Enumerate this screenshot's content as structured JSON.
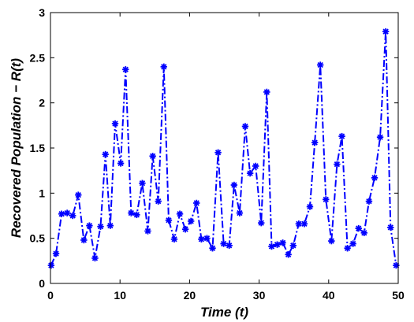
{
  "chart_data": {
    "type": "line",
    "title": "",
    "xlabel": "Time (t)",
    "ylabel": "Recovered Population − R(t)",
    "xlim": [
      0,
      50
    ],
    "ylim": [
      0,
      3
    ],
    "xticks": [
      "0",
      "10",
      "20",
      "30",
      "40",
      "50"
    ],
    "yticks": [
      "0",
      "0.5",
      "1",
      "1.5",
      "2",
      "2.5",
      "3"
    ],
    "grid": false,
    "series": [
      {
        "color": "#0000ff",
        "line_style": "dash-dot",
        "marker": "asterisk",
        "x": [
          0.1,
          0.8,
          1.6,
          2.4,
          3.2,
          4.0,
          4.8,
          5.6,
          6.4,
          7.2,
          7.9,
          8.6,
          9.3,
          10.1,
          10.8,
          11.6,
          12.4,
          13.2,
          14.0,
          14.7,
          15.5,
          16.3,
          17.0,
          17.8,
          18.6,
          19.4,
          20.2,
          21.0,
          21.7,
          22.5,
          23.3,
          24.1,
          24.9,
          25.7,
          26.4,
          27.2,
          28.0,
          28.7,
          29.5,
          30.3,
          31.1,
          31.8,
          32.6,
          33.4,
          34.2,
          34.9,
          35.7,
          36.5,
          37.3,
          38.0,
          38.8,
          39.6,
          40.4,
          41.2,
          41.9,
          42.7,
          43.5,
          44.3,
          45.1,
          45.8,
          46.6,
          47.4,
          48.2,
          48.9,
          49.7
        ],
        "y": [
          0.2,
          0.33,
          0.77,
          0.78,
          0.75,
          0.98,
          0.48,
          0.64,
          0.28,
          0.63,
          1.43,
          0.64,
          1.77,
          1.33,
          2.37,
          0.78,
          0.76,
          1.11,
          0.58,
          1.41,
          0.91,
          2.4,
          0.7,
          0.49,
          0.77,
          0.6,
          0.69,
          0.89,
          0.49,
          0.5,
          0.39,
          1.45,
          0.44,
          0.42,
          1.09,
          0.78,
          1.74,
          1.22,
          1.3,
          0.67,
          2.12,
          0.41,
          0.43,
          0.45,
          0.32,
          0.42,
          0.66,
          0.66,
          0.85,
          1.56,
          2.42,
          0.93,
          0.47,
          1.32,
          1.63,
          0.39,
          0.44,
          0.61,
          0.56,
          0.91,
          1.17,
          1.62,
          2.79,
          0.62,
          0.2
        ]
      }
    ]
  }
}
